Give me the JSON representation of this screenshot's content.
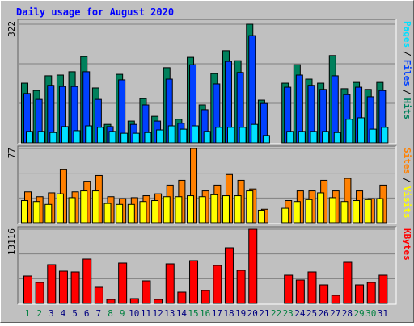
{
  "chart_data": [
    {
      "type": "bar",
      "title": "Daily usage for August 2020",
      "categories": [
        "1",
        "2",
        "3",
        "4",
        "5",
        "6",
        "7",
        "8",
        "9",
        "10",
        "11",
        "12",
        "13",
        "14",
        "15",
        "16",
        "17",
        "18",
        "19",
        "20",
        "21",
        "22",
        "23",
        "24",
        "25",
        "26",
        "27",
        "28",
        "29",
        "30",
        "31"
      ],
      "category_colors": [
        "#008040",
        "#008040",
        "#000080",
        "#000080",
        "#000080",
        "#000080",
        "#000080",
        "#008040",
        "#008040",
        "#000080",
        "#000080",
        "#000080",
        "#000080",
        "#000080",
        "#008040",
        "#008040",
        "#000080",
        "#000080",
        "#000080",
        "#000080",
        "#000080",
        "#008040",
        "#008040",
        "#000080",
        "#000080",
        "#000080",
        "#000080",
        "#000080",
        "#008040",
        "#008040",
        "#000080"
      ],
      "legend_separator": "/",
      "series": [
        {
          "name": "Hits",
          "color": "#00805c",
          "values": [
            162,
            142,
            182,
            184,
            193,
            234,
            149,
            50,
            186,
            59,
            120,
            72,
            204,
            64,
            232,
            103,
            188,
            250,
            223,
            322,
            116,
            null,
            162,
            212,
            173,
            162,
            237,
            147,
            164,
            145,
            164
          ]
        },
        {
          "name": "Files",
          "color": "#0040ff",
          "values": [
            134,
            118,
            156,
            153,
            153,
            193,
            118,
            44,
            171,
            50,
            103,
            59,
            173,
            53,
            212,
            90,
            160,
            221,
            191,
            291,
            107,
            null,
            151,
            184,
            156,
            145,
            182,
            131,
            151,
            125,
            142
          ]
        },
        {
          "name": "Pages",
          "color": "#00e0ff",
          "values": [
            31,
            31,
            28,
            44,
            33,
            46,
            42,
            31,
            26,
            26,
            28,
            35,
            46,
            37,
            46,
            31,
            42,
            42,
            42,
            50,
            20,
            null,
            31,
            31,
            31,
            31,
            28,
            64,
            68,
            37,
            42
          ]
        }
      ],
      "ylim": [
        0,
        322
      ],
      "yticks": [
        322
      ]
    },
    {
      "type": "bar",
      "series": [
        {
          "name": "Visits",
          "color": "#ffff00",
          "values": [
            23,
            22,
            19,
            30,
            26,
            33,
            33,
            20,
            19,
            19,
            22,
            23,
            27,
            27,
            28,
            27,
            29,
            28,
            28,
            33,
            13,
            null,
            15,
            22,
            24,
            31,
            26,
            22,
            23,
            24,
            25
          ]
        },
        {
          "name": "Sites",
          "color": "#ff8000",
          "values": [
            32,
            27,
            31,
            55,
            32,
            43,
            49,
            27,
            25,
            26,
            28,
            30,
            39,
            44,
            77,
            33,
            39,
            50,
            44,
            35,
            14,
            null,
            23,
            33,
            33,
            44,
            33,
            46,
            33,
            25,
            39
          ]
        }
      ],
      "ylim": [
        0,
        77
      ],
      "yticks": [
        77
      ]
    },
    {
      "type": "bar",
      "series": [
        {
          "name": "KBytes",
          "color": "#ff0000",
          "values": [
            4848,
            3707,
            6844,
            5703,
            5561,
            7842,
            2852,
            713,
            7129,
            855,
            3992,
            713,
            6986,
            1996,
            7556,
            2281,
            6701,
            9837,
            5845,
            13116,
            0,
            null,
            4990,
            4134,
            5561,
            3279,
            1426,
            7271,
            3279,
            3707,
            4990
          ]
        }
      ],
      "ylim": [
        0,
        13116
      ],
      "yticks": [
        13116
      ]
    }
  ]
}
